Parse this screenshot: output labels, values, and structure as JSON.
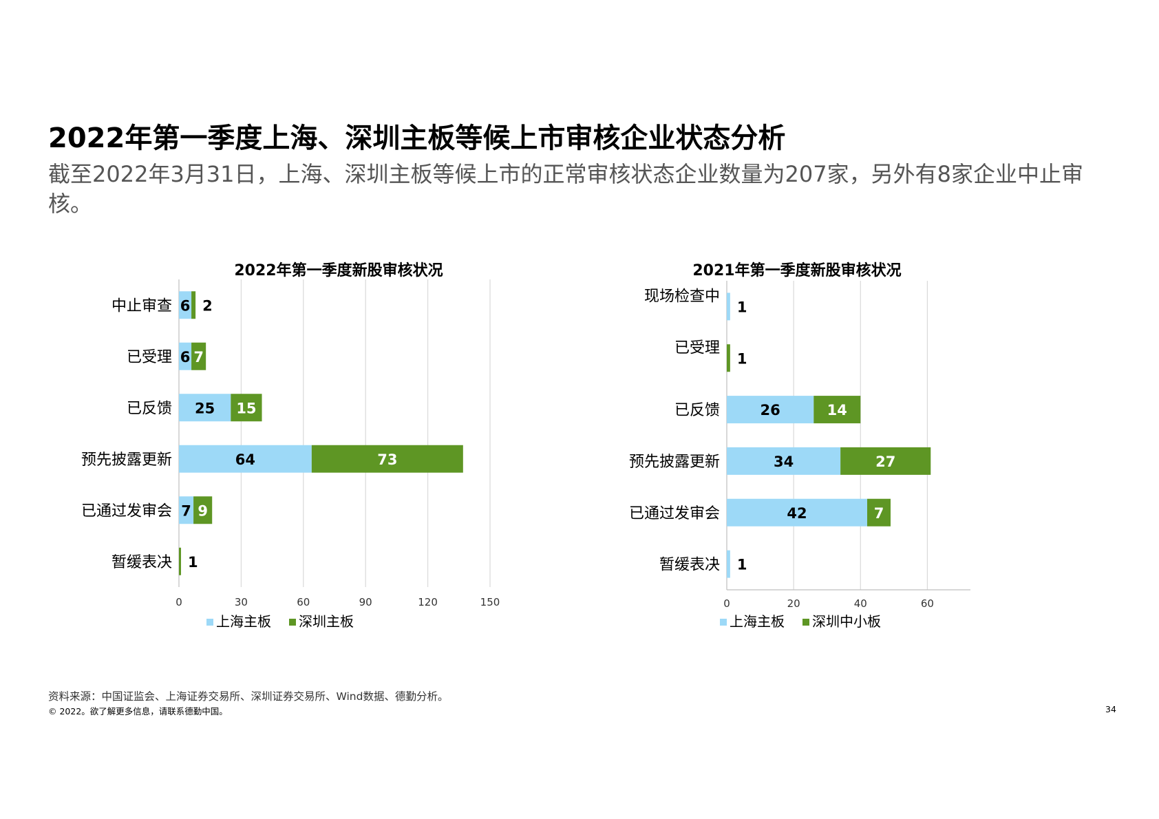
{
  "page": {
    "title": "2022年第一季度上海、深圳主板等候上市审核企业状态分析",
    "subtitle": "截至2022年3月31日，上海、深圳主板等候上市的正常审核状态企业数量为207家，另外有8家企业中止审核。",
    "source": "资料来源：中国证监会、上海证券交易所、深圳证券交易所、Wind数据、德勤分析。",
    "copyright": "© 2022。欲了解更多信息，请联系德勤中国。",
    "page_number": "34"
  },
  "colors": {
    "light_blue": "#9DD9F7",
    "green": "#5E9624",
    "grid": "#D9D9D9",
    "axis": "#BFBFBF"
  },
  "chart_data": [
    {
      "type": "bar",
      "orientation": "horizontal",
      "stacked": true,
      "title": "2022年第一季度新股审核状况",
      "categories": [
        "中止审查",
        "已受理",
        "已反馈",
        "预先披露更新",
        "已通过发审会",
        "暂缓表决"
      ],
      "series": [
        {
          "name": "上海主板",
          "color": "#9DD9F7",
          "values": [
            6,
            6,
            25,
            64,
            7,
            0
          ],
          "labels": [
            "6",
            "6",
            "25",
            "64",
            "7",
            ""
          ]
        },
        {
          "name": "深圳主板",
          "color": "#5E9624",
          "values": [
            2,
            7,
            15,
            73,
            9,
            1
          ],
          "labels": [
            "2",
            "7",
            "15",
            "73",
            "9",
            "1"
          ]
        }
      ],
      "xlim": [
        0,
        150
      ],
      "xticks": [
        "0",
        "30",
        "60",
        "90",
        "120",
        "150"
      ],
      "legend": "bottom"
    },
    {
      "type": "bar",
      "orientation": "horizontal",
      "stacked": true,
      "title": "2021年第一季度新股审核状况",
      "categories": [
        "现场检查中",
        "已受理",
        "已反馈",
        "预先披露更新",
        "已通过发审会",
        "暂缓表决"
      ],
      "series": [
        {
          "name": "上海主板",
          "color": "#9DD9F7",
          "values": [
            1,
            0,
            26,
            34,
            42,
            1
          ],
          "labels": [
            "1",
            "",
            "26",
            "34",
            "42",
            "1"
          ]
        },
        {
          "name": "深圳中小板",
          "color": "#5E9624",
          "values": [
            0,
            1,
            14,
            27,
            7,
            0
          ],
          "labels": [
            "",
            "1",
            "14",
            "27",
            "7",
            ""
          ]
        }
      ],
      "xlim": [
        0,
        70
      ],
      "xticks": [
        "0",
        "20",
        "40",
        "60"
      ],
      "legend": "bottom"
    }
  ]
}
